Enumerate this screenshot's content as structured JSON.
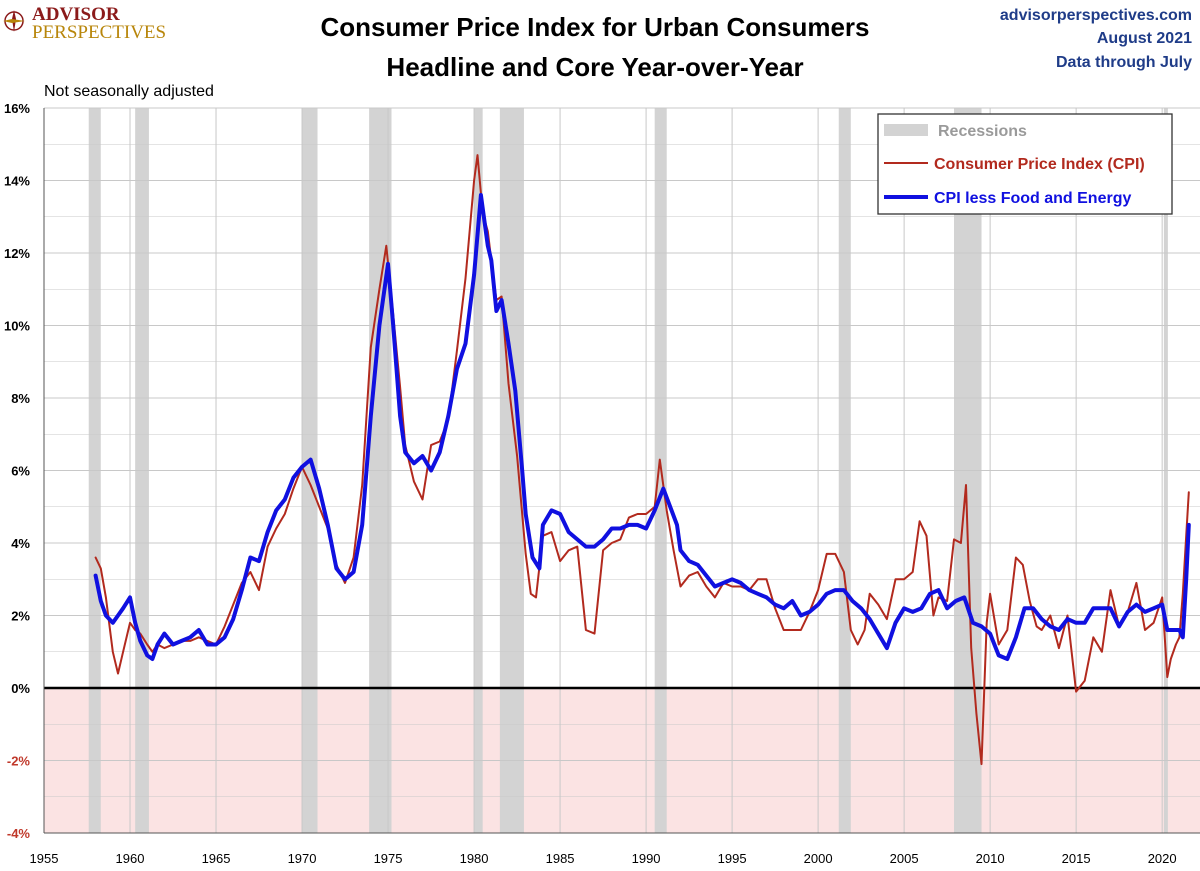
{
  "header": {
    "logo_top": "ADVISOR",
    "logo_bottom": "PERSPECTIVES",
    "title_line1": "Consumer Price Index for Urban Consumers",
    "title_line2": "Headline and Core Year-over-Year",
    "source_site": "advisorperspectives.com",
    "source_date": "August 2021",
    "source_note": "Data through July",
    "adjustment_note": "Not seasonally adjusted"
  },
  "colors": {
    "cpi": "#b22a1e",
    "core": "#1010e0",
    "recession": "#d3d3d3",
    "negative_zone": "#fbe3e3",
    "grid": "#c8c8c8"
  },
  "chart_data": {
    "type": "line",
    "title": "Consumer Price Index for Urban Consumers — Headline and Core Year-over-Year",
    "xlabel": "",
    "ylabel": "",
    "xlim": [
      1955,
      2022.2
    ],
    "ylim": [
      -4,
      16
    ],
    "y_ticks": [
      16,
      14,
      12,
      10,
      8,
      6,
      4,
      2,
      0,
      -2,
      -4
    ],
    "y_tick_labels": [
      "16%",
      "14%",
      "12%",
      "10%",
      "8%",
      "6%",
      "4%",
      "2%",
      "0%",
      "-2%",
      "-4%"
    ],
    "x_ticks": [
      1955,
      1960,
      1965,
      1970,
      1975,
      1980,
      1985,
      1990,
      1995,
      2000,
      2005,
      2010,
      2015,
      2020
    ],
    "x_tick_labels": [
      "1955",
      "1960",
      "1965",
      "1970",
      "1975",
      "1980",
      "1985",
      "1990",
      "1995",
      "2000",
      "2005",
      "2010",
      "2015",
      "2020"
    ],
    "legend": {
      "position": "top-right",
      "recession_label": "Recessions",
      "cpi_label": "Consumer Price Index (CPI)",
      "core_label": "CPI less Food and Energy"
    },
    "recessions": [
      [
        1957.6,
        1958.3
      ],
      [
        1960.3,
        1961.1
      ],
      [
        1970.0,
        1970.9
      ],
      [
        1973.9,
        1975.2
      ],
      [
        1980.0,
        1980.5
      ],
      [
        1981.5,
        1982.9
      ],
      [
        1990.5,
        1991.2
      ],
      [
        2001.2,
        2001.9
      ],
      [
        2007.9,
        2009.5
      ],
      [
        2020.1,
        2020.3
      ]
    ],
    "series": [
      {
        "name": "Consumer Price Index (CPI)",
        "x": [
          1958.0,
          1958.3,
          1958.6,
          1959.0,
          1959.3,
          1959.6,
          1960.0,
          1960.3,
          1960.6,
          1961.0,
          1961.3,
          1961.6,
          1962.0,
          1962.5,
          1963.0,
          1963.5,
          1964.0,
          1964.5,
          1965.0,
          1965.5,
          1966.0,
          1966.5,
          1967.0,
          1967.5,
          1968.0,
          1968.5,
          1969.0,
          1969.5,
          1970.0,
          1970.5,
          1971.0,
          1971.5,
          1972.0,
          1972.5,
          1973.0,
          1973.5,
          1974.0,
          1974.5,
          1974.9,
          1975.3,
          1975.7,
          1976.0,
          1976.5,
          1977.0,
          1977.5,
          1978.0,
          1978.5,
          1979.0,
          1979.5,
          1980.0,
          1980.2,
          1980.5,
          1980.8,
          1981.0,
          1981.3,
          1981.6,
          1982.0,
          1982.5,
          1983.0,
          1983.3,
          1983.6,
          1984.0,
          1984.5,
          1985.0,
          1985.5,
          1986.0,
          1986.5,
          1987.0,
          1987.5,
          1988.0,
          1988.5,
          1989.0,
          1989.5,
          1990.0,
          1990.5,
          1990.8,
          1991.2,
          1991.6,
          1992.0,
          1992.5,
          1993.0,
          1993.5,
          1994.0,
          1994.5,
          1995.0,
          1995.5,
          1996.0,
          1996.5,
          1997.0,
          1997.5,
          1998.0,
          1998.5,
          1999.0,
          1999.5,
          2000.0,
          2000.5,
          2001.0,
          2001.5,
          2001.9,
          2002.3,
          2002.7,
          2003.0,
          2003.5,
          2004.0,
          2004.5,
          2005.0,
          2005.5,
          2005.9,
          2006.3,
          2006.7,
          2007.0,
          2007.5,
          2007.9,
          2008.3,
          2008.6,
          2008.9,
          2009.2,
          2009.5,
          2009.8,
          2010.0,
          2010.5,
          2011.0,
          2011.5,
          2011.9,
          2012.3,
          2012.7,
          2013.0,
          2013.5,
          2014.0,
          2014.5,
          2015.0,
          2015.5,
          2016.0,
          2016.5,
          2017.0,
          2017.5,
          2018.0,
          2018.5,
          2019.0,
          2019.5,
          2020.0,
          2020.3,
          2020.5,
          2020.8,
          2021.0,
          2021.2,
          2021.4,
          2021.55
        ],
        "values": [
          3.6,
          3.3,
          2.5,
          1.0,
          0.4,
          1.0,
          1.8,
          1.6,
          1.5,
          1.2,
          1.0,
          1.2,
          1.1,
          1.2,
          1.3,
          1.3,
          1.4,
          1.3,
          1.2,
          1.7,
          2.3,
          2.9,
          3.2,
          2.7,
          3.9,
          4.4,
          4.8,
          5.5,
          6.1,
          5.6,
          5.0,
          4.4,
          3.4,
          2.9,
          3.6,
          5.6,
          9.4,
          11.0,
          12.2,
          10.3,
          8.3,
          6.7,
          5.7,
          5.2,
          6.7,
          6.8,
          7.4,
          9.3,
          11.3,
          14.0,
          14.7,
          13.1,
          12.6,
          11.8,
          10.7,
          10.8,
          8.4,
          6.4,
          3.7,
          2.6,
          2.5,
          4.2,
          4.3,
          3.5,
          3.8,
          3.9,
          1.6,
          1.5,
          3.8,
          4.0,
          4.1,
          4.7,
          4.8,
          4.8,
          5.0,
          6.3,
          4.9,
          3.8,
          2.8,
          3.1,
          3.2,
          2.8,
          2.5,
          2.9,
          2.8,
          2.8,
          2.7,
          3.0,
          3.0,
          2.2,
          1.6,
          1.6,
          1.6,
          2.1,
          2.7,
          3.7,
          3.7,
          3.2,
          1.6,
          1.2,
          1.6,
          2.6,
          2.3,
          1.9,
          3.0,
          3.0,
          3.2,
          4.6,
          4.2,
          2.0,
          2.5,
          2.4,
          4.1,
          4.0,
          5.6,
          1.1,
          -0.7,
          -2.1,
          1.8,
          2.6,
          1.2,
          1.6,
          3.6,
          3.4,
          2.4,
          1.7,
          1.6,
          2.0,
          1.1,
          2.0,
          -0.1,
          0.2,
          1.4,
          1.0,
          2.7,
          1.7,
          2.1,
          2.9,
          1.6,
          1.8,
          2.5,
          0.3,
          0.8,
          1.2,
          1.4,
          2.6,
          4.2,
          5.4
        ]
      },
      {
        "name": "CPI less Food and Energy",
        "x": [
          1958.0,
          1958.3,
          1958.6,
          1959.0,
          1959.3,
          1959.6,
          1960.0,
          1960.3,
          1960.6,
          1961.0,
          1961.3,
          1961.6,
          1962.0,
          1962.5,
          1963.0,
          1963.5,
          1964.0,
          1964.5,
          1965.0,
          1965.5,
          1966.0,
          1966.5,
          1967.0,
          1967.5,
          1968.0,
          1968.5,
          1969.0,
          1969.5,
          1970.0,
          1970.5,
          1971.0,
          1971.5,
          1972.0,
          1972.5,
          1973.0,
          1973.5,
          1974.0,
          1974.5,
          1975.0,
          1975.3,
          1975.7,
          1976.0,
          1976.5,
          1977.0,
          1977.5,
          1978.0,
          1978.5,
          1979.0,
          1979.5,
          1980.0,
          1980.4,
          1980.8,
          1981.0,
          1981.3,
          1981.6,
          1982.0,
          1982.4,
          1982.8,
          1983.0,
          1983.4,
          1983.8,
          1984.0,
          1984.5,
          1985.0,
          1985.5,
          1986.0,
          1986.5,
          1987.0,
          1987.5,
          1988.0,
          1988.5,
          1989.0,
          1989.5,
          1990.0,
          1990.5,
          1991.0,
          1991.4,
          1991.8,
          1992.0,
          1992.5,
          1993.0,
          1993.5,
          1994.0,
          1994.5,
          1995.0,
          1995.5,
          1996.0,
          1996.5,
          1997.0,
          1997.5,
          1998.0,
          1998.5,
          1999.0,
          1999.5,
          2000.0,
          2000.5,
          2001.0,
          2001.5,
          2002.0,
          2002.5,
          2003.0,
          2003.5,
          2004.0,
          2004.5,
          2005.0,
          2005.5,
          2006.0,
          2006.5,
          2007.0,
          2007.5,
          2008.0,
          2008.5,
          2009.0,
          2009.5,
          2010.0,
          2010.5,
          2011.0,
          2011.5,
          2012.0,
          2012.5,
          2013.0,
          2013.5,
          2014.0,
          2014.5,
          2015.0,
          2015.5,
          2016.0,
          2016.5,
          2017.0,
          2017.5,
          2018.0,
          2018.5,
          2019.0,
          2019.5,
          2020.0,
          2020.3,
          2020.6,
          2021.0,
          2021.2,
          2021.4,
          2021.55
        ],
        "values": [
          3.1,
          2.4,
          2.0,
          1.8,
          2.0,
          2.2,
          2.5,
          1.8,
          1.3,
          0.9,
          0.8,
          1.2,
          1.5,
          1.2,
          1.3,
          1.4,
          1.6,
          1.2,
          1.2,
          1.4,
          1.9,
          2.7,
          3.6,
          3.5,
          4.3,
          4.9,
          5.2,
          5.8,
          6.1,
          6.3,
          5.5,
          4.5,
          3.3,
          3.0,
          3.2,
          4.5,
          7.5,
          10.0,
          11.7,
          10.0,
          7.5,
          6.5,
          6.2,
          6.4,
          6.0,
          6.5,
          7.5,
          8.8,
          9.5,
          11.4,
          13.6,
          12.2,
          11.8,
          10.4,
          10.7,
          9.5,
          8.2,
          6.0,
          4.8,
          3.6,
          3.3,
          4.5,
          4.9,
          4.8,
          4.3,
          4.1,
          3.9,
          3.9,
          4.1,
          4.4,
          4.4,
          4.5,
          4.5,
          4.4,
          4.9,
          5.5,
          5.0,
          4.5,
          3.8,
          3.5,
          3.4,
          3.1,
          2.8,
          2.9,
          3.0,
          2.9,
          2.7,
          2.6,
          2.5,
          2.3,
          2.2,
          2.4,
          2.0,
          2.1,
          2.3,
          2.6,
          2.7,
          2.7,
          2.4,
          2.2,
          1.9,
          1.5,
          1.1,
          1.8,
          2.2,
          2.1,
          2.2,
          2.6,
          2.7,
          2.2,
          2.4,
          2.5,
          1.8,
          1.7,
          1.5,
          0.9,
          0.8,
          1.4,
          2.2,
          2.2,
          1.9,
          1.7,
          1.6,
          1.9,
          1.8,
          1.8,
          2.2,
          2.2,
          2.2,
          1.7,
          2.1,
          2.3,
          2.1,
          2.2,
          2.3,
          1.6,
          1.6,
          1.6,
          1.4,
          3.0,
          4.5
        ]
      }
    ]
  }
}
